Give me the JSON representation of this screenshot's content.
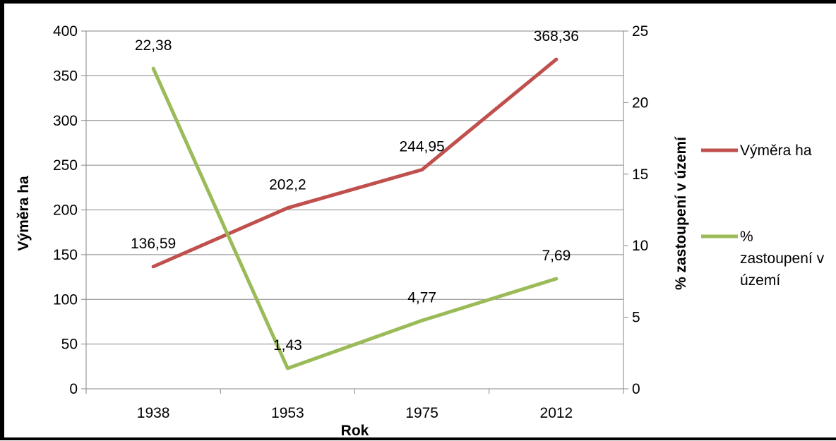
{
  "chart_data": {
    "type": "line",
    "categories": [
      "1938",
      "1953",
      "1975",
      "2012"
    ],
    "xlabel": "Rok",
    "ylabel_left": "Výměra ha",
    "ylabel_right": "% zastoupení v území",
    "ylim_left": [
      0,
      400
    ],
    "ylim_right": [
      0,
      25
    ],
    "yticks_left": [
      0,
      50,
      100,
      150,
      200,
      250,
      300,
      350,
      400
    ],
    "yticks_right": [
      0,
      5,
      10,
      15,
      20,
      25
    ],
    "grid": true,
    "legend_position": "right",
    "series": [
      {
        "name": "Výměra ha",
        "axis": "left",
        "color": "#c0504d",
        "values": [
          136.59,
          202.2,
          244.95,
          368.36
        ],
        "labels": [
          "136,59",
          "202,2",
          "244,95",
          "368,36"
        ]
      },
      {
        "name": "% zastoupení v území",
        "legend_lines": [
          "%",
          "zastoupení v",
          "území"
        ],
        "axis": "right",
        "color": "#9bbb59",
        "values": [
          22.38,
          1.43,
          4.77,
          7.69
        ],
        "labels": [
          "22,38",
          "1,43",
          "4,77",
          "7,69"
        ]
      }
    ]
  }
}
